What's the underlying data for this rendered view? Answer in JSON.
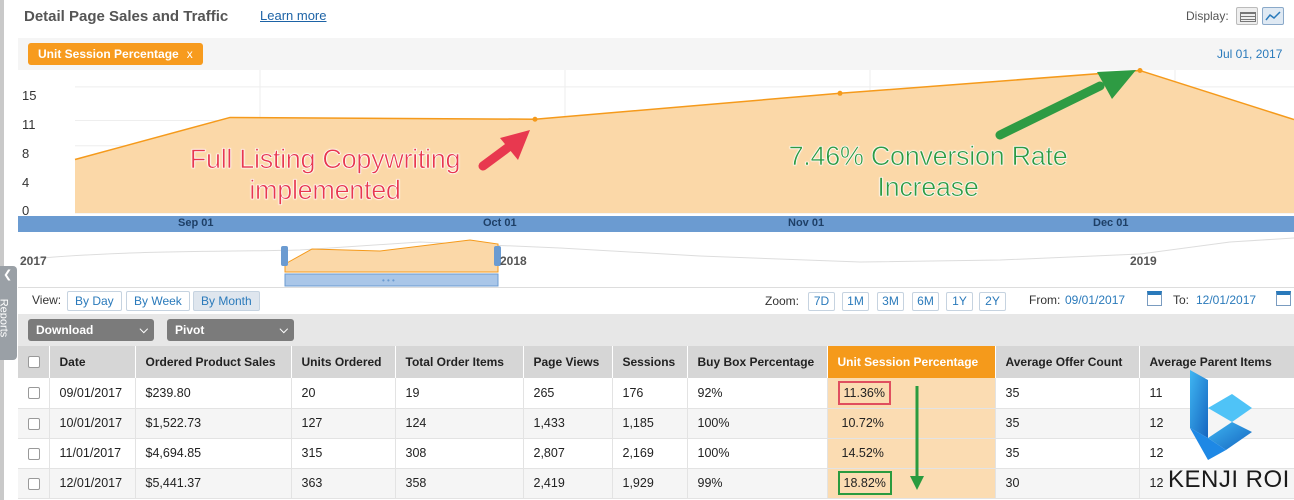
{
  "header": {
    "title": "Detail Page Sales and Traffic",
    "learn_more": "Learn more",
    "display_label": "Display:"
  },
  "sidebar_tab": {
    "label": "Reports",
    "icon": "chevron-left-icon"
  },
  "chart": {
    "metric_pill": "Unit Session Percentage",
    "pill_close": "x",
    "date_label": "Jul 01, 2017",
    "y_ticks": [
      "15",
      "11",
      "8",
      "4",
      "0"
    ],
    "timeline_labels": [
      "Sep 01",
      "Oct 01",
      "Nov 01",
      "Dec 01"
    ],
    "overview_years": [
      "2017",
      "2018",
      "2019"
    ],
    "annotation_left": "Full Listing Copywriting implemented",
    "annotation_right": "7.46% Conversion Rate Increase"
  },
  "chart_data": {
    "type": "area",
    "title": "",
    "x": [
      "Sep 01",
      "Oct 01",
      "Nov 01",
      "Dec 01"
    ],
    "series": [
      {
        "values": [
          11.36,
          10.72,
          14.52,
          18.82
        ]
      }
    ],
    "ylim": [
      0,
      17
    ],
    "y_ticks": [
      0,
      4,
      8,
      11,
      15
    ],
    "grid": true,
    "colors": {
      "fill": "#fbd8a8",
      "line": "#f59a1b"
    }
  },
  "controls": {
    "view_label": "View:",
    "view_buttons": [
      "By Day",
      "By Week",
      "By Month"
    ],
    "view_active": "By Month",
    "zoom_label": "Zoom:",
    "zoom_buttons": [
      "7D",
      "1M",
      "3M",
      "6M",
      "1Y",
      "2Y"
    ],
    "from_label": "From:",
    "from_date": "09/01/2017",
    "to_label": "To:",
    "to_date": "12/01/2017"
  },
  "toolbar": {
    "download": "Download",
    "pivot": "Pivot"
  },
  "table": {
    "headers": [
      "Date",
      "Ordered Product Sales",
      "Units Ordered",
      "Total Order Items",
      "Page Views",
      "Sessions",
      "Buy Box Percentage",
      "Unit Session Percentage",
      "Average Offer Count",
      "Average Parent Items"
    ],
    "rows": [
      [
        "09/01/2017",
        "$239.80",
        "20",
        "19",
        "265",
        "176",
        "92%",
        "11.36%",
        "35",
        "11"
      ],
      [
        "10/01/2017",
        "$1,522.73",
        "127",
        "124",
        "1,433",
        "1,185",
        "100%",
        "10.72%",
        "35",
        "12"
      ],
      [
        "11/01/2017",
        "$4,694.85",
        "315",
        "308",
        "2,807",
        "2,169",
        "100%",
        "14.52%",
        "35",
        "12"
      ],
      [
        "12/01/2017",
        "$5,441.37",
        "363",
        "358",
        "2,419",
        "1,929",
        "99%",
        "18.82%",
        "30",
        "12"
      ]
    ]
  },
  "logo": {
    "text": "KENJI ROI"
  },
  "colors": {
    "accent": "#f59a1b",
    "link": "#2a7abb",
    "timeline": "#6b9bd1"
  }
}
